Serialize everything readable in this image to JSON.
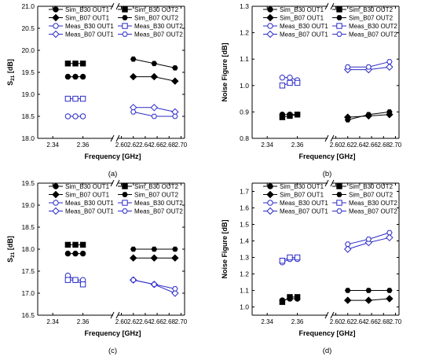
{
  "chart_data": [
    {
      "type": "line",
      "panel_label": "(a)",
      "xlabel": "Frequency [GHz]",
      "ylabel": "S",
      "ylabel_sub": "21",
      "ylabel_unit": " [dB]",
      "ylim": [
        18.0,
        21.0
      ],
      "yticks": [
        "18.0",
        "18.5",
        "19.0",
        "19.5",
        "20.0",
        "20.5",
        "21.0"
      ],
      "xticks_left": [
        "2.34",
        "2.36"
      ],
      "xticks_right": [
        "2.60",
        "2.62",
        "2.64",
        "2.66",
        "2.68",
        "2.70"
      ],
      "x_break": true,
      "grid": false,
      "legend": [
        [
          "Sim_B30 OUT1",
          "Sim_B30 OUT2"
        ],
        [
          "Sim_B07 OUT1",
          "Sim_B07 OUT2"
        ],
        [
          "Meas_B30 OUT1",
          "Meas_B30 OUT2"
        ],
        [
          "Meas_B07 OUT1",
          "Meas_B07 OUT2"
        ]
      ],
      "legend_placement": "top",
      "series": [
        {
          "name": "Sim_B30 OUT1",
          "x": [
            2.35,
            2.355,
            2.36
          ],
          "y": [
            19.4,
            19.4,
            19.4
          ]
        },
        {
          "name": "Sim_B30 OUT2",
          "x": [
            2.35,
            2.355,
            2.36
          ],
          "y": [
            19.7,
            19.7,
            19.7
          ]
        },
        {
          "name": "Sim_B07 OUT1",
          "x": [
            2.62,
            2.655,
            2.69
          ],
          "y": [
            19.4,
            19.4,
            19.3
          ]
        },
        {
          "name": "Sim_B07 OUT2",
          "x": [
            2.62,
            2.655,
            2.69
          ],
          "y": [
            19.8,
            19.7,
            19.6
          ]
        },
        {
          "name": "Meas_B30 OUT1",
          "x": [
            2.35,
            2.355,
            2.36
          ],
          "y": [
            18.5,
            18.5,
            18.5
          ]
        },
        {
          "name": "Meas_B30 OUT2",
          "x": [
            2.35,
            2.355,
            2.36
          ],
          "y": [
            18.9,
            18.9,
            18.9
          ]
        },
        {
          "name": "Meas_B07 OUT1",
          "x": [
            2.62,
            2.655,
            2.69
          ],
          "y": [
            18.7,
            18.7,
            18.6
          ]
        },
        {
          "name": "Meas_B07 OUT2",
          "x": [
            2.62,
            2.655,
            2.69
          ],
          "y": [
            18.6,
            18.5,
            18.5
          ]
        }
      ]
    },
    {
      "type": "line",
      "panel_label": "(b)",
      "xlabel": "Frequency [GHz]",
      "ylabel": "Noise Figure [dB]",
      "ylabel_sub": "",
      "ylabel_unit": "",
      "ylim": [
        0.8,
        1.3
      ],
      "yticks": [
        "0.8",
        "0.9",
        "1.0",
        "1.1",
        "1.2",
        "1.3"
      ],
      "xticks_left": [
        "2.34",
        "2.36"
      ],
      "xticks_right": [
        "2.60",
        "2.62",
        "2.64",
        "2.66",
        "2.68",
        "2.70"
      ],
      "x_break": true,
      "grid": false,
      "legend": [
        [
          "Sim_B30 OUT1",
          "Sim_B30 OUT2"
        ],
        [
          "Sim_B07 OUT1",
          "Sim_B07 OUT2"
        ],
        [
          "Meas_B30 OUT1",
          "Meas_B30 OUT2"
        ],
        [
          "Meas_B07 OUT1",
          "Meas_B07 OUT2"
        ]
      ],
      "legend_placement": "top",
      "series": [
        {
          "name": "Sim_B30 OUT1",
          "x": [
            2.35,
            2.355,
            2.36
          ],
          "y": [
            0.89,
            0.89,
            0.89
          ]
        },
        {
          "name": "Sim_B30 OUT2",
          "x": [
            2.35,
            2.355,
            2.36
          ],
          "y": [
            0.88,
            0.885,
            0.89
          ]
        },
        {
          "name": "Sim_B07 OUT1",
          "x": [
            2.62,
            2.655,
            2.69
          ],
          "y": [
            0.88,
            0.885,
            0.89
          ]
        },
        {
          "name": "Sim_B07 OUT2",
          "x": [
            2.62,
            2.655,
            2.69
          ],
          "y": [
            0.87,
            0.89,
            0.9
          ]
        },
        {
          "name": "Meas_B30 OUT1",
          "x": [
            2.35,
            2.355,
            2.36
          ],
          "y": [
            1.03,
            1.03,
            1.02
          ]
        },
        {
          "name": "Meas_B30 OUT2",
          "x": [
            2.35,
            2.355,
            2.36
          ],
          "y": [
            1.0,
            1.01,
            1.01
          ]
        },
        {
          "name": "Meas_B07 OUT1",
          "x": [
            2.62,
            2.655,
            2.69
          ],
          "y": [
            1.06,
            1.06,
            1.07
          ]
        },
        {
          "name": "Meas_B07 OUT2",
          "x": [
            2.62,
            2.655,
            2.69
          ],
          "y": [
            1.07,
            1.07,
            1.09
          ]
        }
      ]
    },
    {
      "type": "line",
      "panel_label": "(c)",
      "xlabel": "Frequency [GHz]",
      "ylabel": "S",
      "ylabel_sub": "21",
      "ylabel_unit": " [dB]",
      "ylim": [
        16.5,
        19.5
      ],
      "yticks": [
        "16.5",
        "17.0",
        "17.5",
        "18.0",
        "18.5",
        "19.0",
        "19.5"
      ],
      "xticks_left": [
        "2.34",
        "2.36"
      ],
      "xticks_right": [
        "2.60",
        "2.62",
        "2.64",
        "2.66",
        "2.68",
        "2.70"
      ],
      "x_break": true,
      "grid": false,
      "legend": [
        [
          "Sim_B30 OUT1",
          "Sim_B30 OUT2"
        ],
        [
          "Sim_B07 OUT1",
          "Sim_B07 OUT2"
        ],
        [
          "Meas_B30 OUT1",
          "Meas_B30 OUT2"
        ],
        [
          "Meas_B07 OUT1",
          "Meas_B07 OUT2"
        ]
      ],
      "legend_placement": "top",
      "series": [
        {
          "name": "Sim_B30 OUT1",
          "x": [
            2.35,
            2.355,
            2.36
          ],
          "y": [
            17.9,
            17.9,
            17.9
          ]
        },
        {
          "name": "Sim_B30 OUT2",
          "x": [
            2.35,
            2.355,
            2.36
          ],
          "y": [
            18.1,
            18.1,
            18.1
          ]
        },
        {
          "name": "Sim_B07 OUT1",
          "x": [
            2.62,
            2.655,
            2.69
          ],
          "y": [
            17.8,
            17.8,
            17.8
          ]
        },
        {
          "name": "Sim_B07 OUT2",
          "x": [
            2.62,
            2.655,
            2.69
          ],
          "y": [
            18.0,
            18.0,
            18.0
          ]
        },
        {
          "name": "Meas_B30 OUT1",
          "x": [
            2.35,
            2.355,
            2.36
          ],
          "y": [
            17.4,
            17.3,
            17.3
          ]
        },
        {
          "name": "Meas_B30 OUT2",
          "x": [
            2.35,
            2.355,
            2.36
          ],
          "y": [
            17.3,
            17.3,
            17.2
          ]
        },
        {
          "name": "Meas_B07 OUT1",
          "x": [
            2.62,
            2.655,
            2.69
          ],
          "y": [
            17.3,
            17.2,
            17.0
          ]
        },
        {
          "name": "Meas_B07 OUT2",
          "x": [
            2.62,
            2.655,
            2.69
          ],
          "y": [
            17.3,
            17.2,
            17.1
          ]
        }
      ]
    },
    {
      "type": "line",
      "panel_label": "(d)",
      "xlabel": "Frequency [GHz]",
      "ylabel": "Noise Figure [dB]",
      "ylabel_sub": "",
      "ylabel_unit": "",
      "ylim": [
        0.95,
        1.75
      ],
      "yticks": [
        "1.0",
        "1.1",
        "1.2",
        "1.3",
        "1.4",
        "1.5",
        "1.6",
        "1.7"
      ],
      "xticks_left": [
        "2.34",
        "2.36"
      ],
      "xticks_right": [
        "2.60",
        "2.62",
        "2.64",
        "2.66",
        "2.68",
        "2.70"
      ],
      "x_break": true,
      "grid": false,
      "legend": [
        [
          "Sim_B30 OUT1",
          "Sim_B30 OUT2"
        ],
        [
          "Sim_B07 OUT1",
          "Sim_B07 OUT2"
        ],
        [
          "Meas_B30 OUT1",
          "Meas_B30 OUT2"
        ],
        [
          "Meas_B07 OUT1",
          "Meas_B07 OUT2"
        ]
      ],
      "legend_placement": "top",
      "series": [
        {
          "name": "Sim_B30 OUT1",
          "x": [
            2.35,
            2.355,
            2.36
          ],
          "y": [
            1.04,
            1.05,
            1.05
          ]
        },
        {
          "name": "Sim_B30 OUT2",
          "x": [
            2.35,
            2.355,
            2.36
          ],
          "y": [
            1.03,
            1.06,
            1.06
          ]
        },
        {
          "name": "Sim_B07 OUT1",
          "x": [
            2.62,
            2.655,
            2.69
          ],
          "y": [
            1.04,
            1.04,
            1.05
          ]
        },
        {
          "name": "Sim_B07 OUT2",
          "x": [
            2.62,
            2.655,
            2.69
          ],
          "y": [
            1.1,
            1.1,
            1.1
          ]
        },
        {
          "name": "Meas_B30 OUT1",
          "x": [
            2.35,
            2.355,
            2.36
          ],
          "y": [
            1.27,
            1.29,
            1.29
          ]
        },
        {
          "name": "Meas_B30 OUT2",
          "x": [
            2.35,
            2.355,
            2.36
          ],
          "y": [
            1.28,
            1.3,
            1.3
          ]
        },
        {
          "name": "Meas_B07 OUT1",
          "x": [
            2.62,
            2.655,
            2.69
          ],
          "y": [
            1.35,
            1.39,
            1.42
          ]
        },
        {
          "name": "Meas_B07 OUT2",
          "x": [
            2.62,
            2.655,
            2.69
          ],
          "y": [
            1.38,
            1.41,
            1.45
          ]
        }
      ]
    }
  ],
  "colors": {
    "sim": "#000000",
    "meas": "#2b2bc8",
    "axis": "#000000",
    "background": "#ffffff"
  },
  "markers": {
    "Sim_B30 OUT1": "filled-circle-icon",
    "Sim_B30 OUT2": "filled-square-icon",
    "Sim_B07 OUT1": "filled-diamond-icon",
    "Sim_B07 OUT2": "filled-hexagon-icon",
    "Meas_B30 OUT1": "open-circle-icon",
    "Meas_B30 OUT2": "open-square-icon",
    "Meas_B07 OUT1": "open-diamond-icon",
    "Meas_B07 OUT2": "open-hexagon-icon"
  }
}
